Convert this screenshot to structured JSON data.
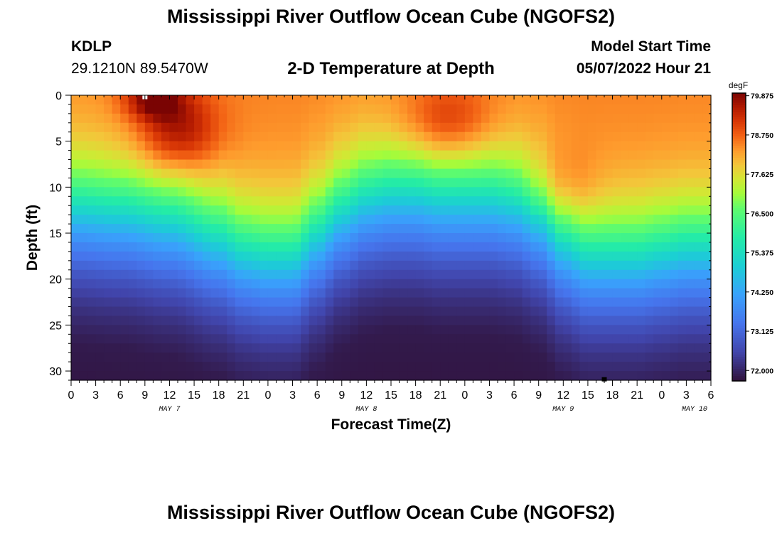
{
  "header": {
    "title": "Mississippi River Outflow Ocean Cube (NGOFS2)",
    "station_id": "KDLP",
    "station_coords": "29.1210N  89.5470W",
    "subtitle": "2-D Temperature at Depth",
    "model_start_label": "Model Start Time",
    "model_start_value": "05/07/2022 Hour 21"
  },
  "footer": {
    "title": "Mississippi River Outflow Ocean Cube (NGOFS2)"
  },
  "chart_data": {
    "type": "heatmap",
    "title": "2-D Temperature at Depth",
    "xlabel": "Forecast Time(Z)",
    "ylabel": "Depth (ft)",
    "x_hours_range": [
      0,
      78
    ],
    "xticks": [
      {
        "h": 0,
        "label": "0"
      },
      {
        "h": 3,
        "label": "3"
      },
      {
        "h": 6,
        "label": "6"
      },
      {
        "h": 9,
        "label": "9"
      },
      {
        "h": 12,
        "label": "12"
      },
      {
        "h": 15,
        "label": "15"
      },
      {
        "h": 18,
        "label": "18"
      },
      {
        "h": 21,
        "label": "21"
      },
      {
        "h": 24,
        "label": "0"
      },
      {
        "h": 27,
        "label": "3"
      },
      {
        "h": 30,
        "label": "6"
      },
      {
        "h": 33,
        "label": "9"
      },
      {
        "h": 36,
        "label": "12"
      },
      {
        "h": 39,
        "label": "15"
      },
      {
        "h": 42,
        "label": "18"
      },
      {
        "h": 45,
        "label": "21"
      },
      {
        "h": 48,
        "label": "0"
      },
      {
        "h": 51,
        "label": "3"
      },
      {
        "h": 54,
        "label": "6"
      },
      {
        "h": 57,
        "label": "9"
      },
      {
        "h": 60,
        "label": "12"
      },
      {
        "h": 63,
        "label": "15"
      },
      {
        "h": 66,
        "label": "18"
      },
      {
        "h": 69,
        "label": "21"
      },
      {
        "h": 72,
        "label": "0"
      },
      {
        "h": 75,
        "label": "3"
      },
      {
        "h": 78,
        "label": "6"
      }
    ],
    "date_labels": [
      {
        "h": 12,
        "label": "MAY 7"
      },
      {
        "h": 36,
        "label": "MAY 8"
      },
      {
        "h": 60,
        "label": "MAY 9"
      },
      {
        "h": 76,
        "label": "MAY 10"
      }
    ],
    "ylim": [
      0,
      31
    ],
    "yticks": [
      0,
      5,
      10,
      15,
      20,
      25,
      30
    ],
    "y_reversed": true,
    "colorbar": {
      "unit": "degF",
      "range": [
        71.7,
        79.95
      ],
      "ticks": [
        79.875,
        78.75,
        77.625,
        76.5,
        75.375,
        74.25,
        73.125,
        72.0
      ],
      "tick_labels": [
        "79.875",
        "78.750",
        "77.625",
        "76.500",
        "75.375",
        "74.250",
        "73.125",
        "72.000"
      ]
    },
    "thermocline_depth_ft": [
      {
        "h": 0,
        "d": 12.0
      },
      {
        "h": 6,
        "d": 12.5
      },
      {
        "h": 12,
        "d": 13.5
      },
      {
        "h": 18,
        "d": 15.5
      },
      {
        "h": 21,
        "d": 17.0
      },
      {
        "h": 24,
        "d": 17.5
      },
      {
        "h": 27,
        "d": 17.5
      },
      {
        "h": 30,
        "d": 15.0
      },
      {
        "h": 33,
        "d": 12.5
      },
      {
        "h": 36,
        "d": 11.0
      },
      {
        "h": 39,
        "d": 10.5
      },
      {
        "h": 42,
        "d": 10.5
      },
      {
        "h": 45,
        "d": 11.0
      },
      {
        "h": 48,
        "d": 11.0
      },
      {
        "h": 51,
        "d": 11.0
      },
      {
        "h": 54,
        "d": 11.5
      },
      {
        "h": 57,
        "d": 13.0
      },
      {
        "h": 60,
        "d": 16.0
      },
      {
        "h": 63,
        "d": 17.5
      },
      {
        "h": 66,
        "d": 17.5
      },
      {
        "h": 69,
        "d": 17.5
      },
      {
        "h": 72,
        "d": 17.0
      },
      {
        "h": 75,
        "d": 16.5
      },
      {
        "h": 78,
        "d": 16.5
      }
    ],
    "warm_cores": [
      {
        "h": 13,
        "d": 4,
        "t": 79.9,
        "sh": 3.5,
        "sd": 3.2
      },
      {
        "h": 10,
        "d": 0.5,
        "t": 79.9,
        "sh": 2.5,
        "sd": 1.5
      },
      {
        "h": 46,
        "d": 3,
        "t": 79.5,
        "sh": 4,
        "sd": 3
      },
      {
        "h": 60,
        "d": 10,
        "t": 79.0,
        "sh": 3,
        "sd": 3
      }
    ],
    "markers": [
      {
        "h": 9,
        "d": 0.2,
        "color": "#ffffff"
      },
      {
        "h": 65,
        "d": 30.9,
        "color": "#000000"
      }
    ]
  }
}
